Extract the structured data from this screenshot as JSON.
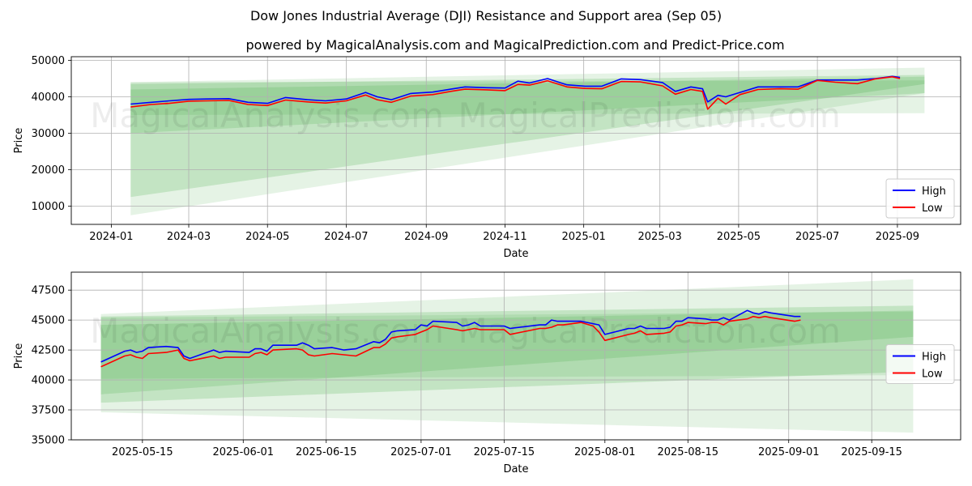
{
  "title": "Dow Jones Industrial Average (DJI) Resistance and Support area (Sep 05)",
  "subtitle": "powered by MagicalAnalysis.com and MagicalPrediction.com and Predict-Price.com",
  "watermarks": [
    "MagicalAnalysis.com",
    "MagicalPrediction.com"
  ],
  "colors": {
    "high": "#0000ff",
    "low": "#ff0000",
    "band": "#2ca02c",
    "grid": "#b0b0b0"
  },
  "chart_data": [
    {
      "type": "line",
      "xlabel": "Date",
      "ylabel": "Price",
      "xlim": [
        "2023-12-01",
        "2025-10-20"
      ],
      "ylim": [
        5000,
        51000
      ],
      "xticks": [
        "2024-01",
        "2024-03",
        "2024-05",
        "2024-07",
        "2024-09",
        "2024-11",
        "2025-01",
        "2025-03",
        "2025-05",
        "2025-07",
        "2025-09"
      ],
      "yticks": [
        10000,
        20000,
        30000,
        40000,
        50000
      ],
      "legend": "lower right",
      "grid": true,
      "bands": [
        {
          "x": [
            "2024-01-16",
            "2025-09-22"
          ],
          "upper": [
            44000,
            48000
          ],
          "lower": [
            7500,
            41000
          ],
          "opacity": 0.12
        },
        {
          "x": [
            "2024-01-16",
            "2025-09-22"
          ],
          "upper": [
            43500,
            46000
          ],
          "lower": [
            12500,
            43500
          ],
          "opacity": 0.18
        },
        {
          "x": [
            "2024-01-16",
            "2025-09-22"
          ],
          "upper": [
            42000,
            45500
          ],
          "lower": [
            30000,
            41000
          ],
          "opacity": 0.16
        },
        {
          "x": [
            "2024-01-16",
            "2025-09-22"
          ],
          "upper": [
            44000,
            44500
          ],
          "lower": [
            35000,
            35500
          ],
          "opacity": 0.12
        }
      ],
      "series": [
        {
          "name": "High",
          "x": [
            "2024-01-16",
            "2024-02-01",
            "2024-02-15",
            "2024-03-01",
            "2024-03-15",
            "2024-04-01",
            "2024-04-16",
            "2024-05-01",
            "2024-05-15",
            "2024-06-01",
            "2024-06-15",
            "2024-07-01",
            "2024-07-16",
            "2024-07-25",
            "2024-08-05",
            "2024-08-20",
            "2024-09-06",
            "2024-09-20",
            "2024-10-01",
            "2024-10-18",
            "2024-11-01",
            "2024-11-11",
            "2024-11-20",
            "2024-12-04",
            "2024-12-19",
            "2025-01-02",
            "2025-01-15",
            "2025-01-30",
            "2025-02-14",
            "2025-03-03",
            "2025-03-13",
            "2025-03-25",
            "2025-04-03",
            "2025-04-07",
            "2025-04-15",
            "2025-04-21",
            "2025-05-02",
            "2025-05-16",
            "2025-06-02",
            "2025-06-16",
            "2025-07-01",
            "2025-07-15",
            "2025-08-01",
            "2025-08-15",
            "2025-08-28",
            "2025-09-03"
          ],
          "y": [
            38000,
            38500,
            38900,
            39300,
            39400,
            39500,
            38500,
            38200,
            39800,
            39200,
            38900,
            39400,
            41200,
            40000,
            39200,
            40900,
            41300,
            42100,
            42700,
            42500,
            42400,
            44300,
            43800,
            45000,
            43300,
            42900,
            42900,
            44900,
            44700,
            43900,
            41500,
            42700,
            42200,
            38600,
            40400,
            40000,
            41200,
            42700,
            42700,
            42700,
            44600,
            44600,
            44600,
            45000,
            45600,
            45300
          ]
        },
        {
          "name": "Low",
          "x": [
            "2024-01-16",
            "2024-02-01",
            "2024-02-15",
            "2024-03-01",
            "2024-03-15",
            "2024-04-01",
            "2024-04-16",
            "2024-05-01",
            "2024-05-15",
            "2024-06-01",
            "2024-06-15",
            "2024-07-01",
            "2024-07-16",
            "2024-07-25",
            "2024-08-05",
            "2024-08-20",
            "2024-09-06",
            "2024-09-20",
            "2024-10-01",
            "2024-10-18",
            "2024-11-01",
            "2024-11-11",
            "2024-11-20",
            "2024-12-04",
            "2024-12-19",
            "2025-01-02",
            "2025-01-15",
            "2025-01-30",
            "2025-02-14",
            "2025-03-03",
            "2025-03-13",
            "2025-03-25",
            "2025-04-03",
            "2025-04-07",
            "2025-04-15",
            "2025-04-21",
            "2025-05-02",
            "2025-05-16",
            "2025-06-02",
            "2025-06-16",
            "2025-07-01",
            "2025-07-15",
            "2025-08-01",
            "2025-08-15",
            "2025-08-28",
            "2025-09-03"
          ],
          "y": [
            37200,
            37900,
            38200,
            38800,
            38900,
            39000,
            37900,
            37600,
            39100,
            38600,
            38300,
            38900,
            40500,
            39200,
            38500,
            40200,
            40600,
            41500,
            42100,
            41900,
            41700,
            43400,
            43200,
            44400,
            42700,
            42300,
            42200,
            44200,
            44100,
            43000,
            40700,
            42000,
            41500,
            36600,
            39600,
            38000,
            40600,
            42000,
            42200,
            42100,
            44500,
            44000,
            43600,
            44900,
            45500,
            45000
          ]
        }
      ]
    },
    {
      "type": "line",
      "xlabel": "Date",
      "ylabel": "Price",
      "xlim": [
        "2025-05-03",
        "2025-09-30"
      ],
      "ylim": [
        35000,
        49000
      ],
      "xticks": [
        "2025-05-15",
        "2025-06-01",
        "2025-06-15",
        "2025-07-01",
        "2025-07-15",
        "2025-08-01",
        "2025-08-15",
        "2025-09-01",
        "2025-09-15"
      ],
      "yticks": [
        35000,
        37500,
        40000,
        42500,
        45000,
        47500
      ],
      "legend": "center right",
      "grid": true,
      "bands": [
        {
          "x": [
            "2025-05-08",
            "2025-09-22"
          ],
          "upper": [
            45500,
            48400
          ],
          "lower": [
            37300,
            35600
          ],
          "opacity": 0.12
        },
        {
          "x": [
            "2025-05-08",
            "2025-09-22"
          ],
          "upper": [
            45300,
            46200
          ],
          "lower": [
            38100,
            40700
          ],
          "opacity": 0.18
        },
        {
          "x": [
            "2025-05-08",
            "2025-09-22"
          ],
          "upper": [
            44600,
            45800
          ],
          "lower": [
            38800,
            43600
          ],
          "opacity": 0.16
        },
        {
          "x": [
            "2025-05-08",
            "2025-09-22"
          ],
          "upper": [
            45200,
            45700
          ],
          "lower": [
            40100,
            40400
          ],
          "opacity": 0.12
        }
      ],
      "series": [
        {
          "name": "High",
          "x": [
            "2025-05-08",
            "2025-05-12",
            "2025-05-13",
            "2025-05-14",
            "2025-05-15",
            "2025-05-16",
            "2025-05-19",
            "2025-05-21",
            "2025-05-22",
            "2025-05-23",
            "2025-05-27",
            "2025-05-28",
            "2025-05-29",
            "2025-06-02",
            "2025-06-03",
            "2025-06-04",
            "2025-06-05",
            "2025-06-06",
            "2025-06-10",
            "2025-06-11",
            "2025-06-12",
            "2025-06-13",
            "2025-06-16",
            "2025-06-18",
            "2025-06-20",
            "2025-06-23",
            "2025-06-24",
            "2025-06-25",
            "2025-06-26",
            "2025-06-27",
            "2025-06-30",
            "2025-07-01",
            "2025-07-02",
            "2025-07-03",
            "2025-07-07",
            "2025-07-08",
            "2025-07-09",
            "2025-07-10",
            "2025-07-11",
            "2025-07-14",
            "2025-07-15",
            "2025-07-16",
            "2025-07-21",
            "2025-07-22",
            "2025-07-23",
            "2025-07-24",
            "2025-07-25",
            "2025-07-28",
            "2025-07-30",
            "2025-07-31",
            "2025-08-01",
            "2025-08-05",
            "2025-08-06",
            "2025-08-07",
            "2025-08-08",
            "2025-08-11",
            "2025-08-12",
            "2025-08-13",
            "2025-08-14",
            "2025-08-15",
            "2025-08-18",
            "2025-08-19",
            "2025-08-20",
            "2025-08-21",
            "2025-08-22",
            "2025-08-25",
            "2025-08-26",
            "2025-08-27",
            "2025-08-28",
            "2025-08-29",
            "2025-09-02",
            "2025-09-03"
          ],
          "y": [
            41500,
            42400,
            42500,
            42300,
            42400,
            42700,
            42800,
            42700,
            42000,
            41800,
            42500,
            42300,
            42400,
            42300,
            42600,
            42600,
            42400,
            42900,
            42900,
            43100,
            42900,
            42600,
            42700,
            42500,
            42600,
            43200,
            43100,
            43400,
            44000,
            44100,
            44200,
            44600,
            44500,
            44900,
            44800,
            44500,
            44600,
            44800,
            44500,
            44500,
            44500,
            44300,
            44600,
            44600,
            45000,
            44900,
            44900,
            44900,
            44700,
            44600,
            43800,
            44300,
            44300,
            44500,
            44300,
            44300,
            44400,
            44900,
            44900,
            45200,
            45100,
            45000,
            45000,
            45200,
            45000,
            45800,
            45600,
            45500,
            45700,
            45600,
            45300,
            45300
          ]
        },
        {
          "name": "Low",
          "x": [
            "2025-05-08",
            "2025-05-12",
            "2025-05-13",
            "2025-05-14",
            "2025-05-15",
            "2025-05-16",
            "2025-05-19",
            "2025-05-21",
            "2025-05-22",
            "2025-05-23",
            "2025-05-27",
            "2025-05-28",
            "2025-05-29",
            "2025-06-02",
            "2025-06-03",
            "2025-06-04",
            "2025-06-05",
            "2025-06-06",
            "2025-06-10",
            "2025-06-11",
            "2025-06-12",
            "2025-06-13",
            "2025-06-16",
            "2025-06-18",
            "2025-06-20",
            "2025-06-23",
            "2025-06-24",
            "2025-06-25",
            "2025-06-26",
            "2025-06-27",
            "2025-06-30",
            "2025-07-01",
            "2025-07-02",
            "2025-07-03",
            "2025-07-07",
            "2025-07-08",
            "2025-07-09",
            "2025-07-10",
            "2025-07-11",
            "2025-07-14",
            "2025-07-15",
            "2025-07-16",
            "2025-07-21",
            "2025-07-22",
            "2025-07-23",
            "2025-07-24",
            "2025-07-25",
            "2025-07-28",
            "2025-07-30",
            "2025-07-31",
            "2025-08-01",
            "2025-08-05",
            "2025-08-06",
            "2025-08-07",
            "2025-08-08",
            "2025-08-11",
            "2025-08-12",
            "2025-08-13",
            "2025-08-14",
            "2025-08-15",
            "2025-08-18",
            "2025-08-19",
            "2025-08-20",
            "2025-08-21",
            "2025-08-22",
            "2025-08-25",
            "2025-08-26",
            "2025-08-27",
            "2025-08-28",
            "2025-08-29",
            "2025-09-02",
            "2025-09-03"
          ],
          "y": [
            41100,
            42000,
            42100,
            41900,
            41800,
            42200,
            42300,
            42500,
            41800,
            41600,
            42000,
            41800,
            41900,
            41900,
            42200,
            42300,
            42100,
            42500,
            42600,
            42500,
            42100,
            42000,
            42200,
            42100,
            42000,
            42700,
            42700,
            43000,
            43500,
            43600,
            43800,
            44000,
            44200,
            44500,
            44200,
            44100,
            44200,
            44300,
            44200,
            44200,
            44200,
            43800,
            44300,
            44300,
            44400,
            44600,
            44600,
            44800,
            44500,
            44000,
            43300,
            43800,
            43900,
            44100,
            43800,
            43900,
            44000,
            44500,
            44600,
            44800,
            44700,
            44800,
            44800,
            44600,
            44900,
            45100,
            45300,
            45200,
            45300,
            45200,
            44900,
            45000
          ]
        }
      ]
    }
  ]
}
